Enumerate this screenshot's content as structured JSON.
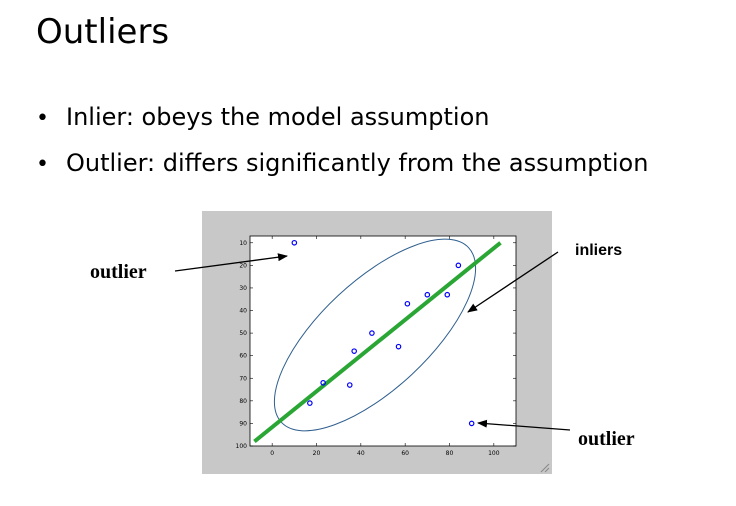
{
  "slide": {
    "title": "Outliers",
    "bullets": [
      "Inlier: obeys the model assumption",
      "Outlier: differs significantly from the assumption"
    ],
    "bullet_symbol": "•"
  },
  "annotations": {
    "left_outlier": "outlier",
    "inliers": "inliers",
    "right_outlier": "outlier"
  },
  "chart_data": {
    "type": "scatter",
    "x_ticks": [
      "0",
      "20",
      "40",
      "60",
      "80",
      "100"
    ],
    "y_ticks": [
      "10",
      "20",
      "30",
      "40",
      "50",
      "60",
      "70",
      "80",
      "90",
      "100"
    ],
    "xlim": [
      -10,
      110
    ],
    "ylim": [
      7,
      100
    ],
    "y_reversed": true,
    "point_color": "#0000ff",
    "line_color": "#2aa635",
    "ellipse_color": "#2f5f8f",
    "points": [
      {
        "x": 10,
        "y": 10,
        "label": "outlier"
      },
      {
        "x": 84,
        "y": 20
      },
      {
        "x": 61,
        "y": 37
      },
      {
        "x": 70,
        "y": 33
      },
      {
        "x": 79,
        "y": 33
      },
      {
        "x": 45,
        "y": 50
      },
      {
        "x": 37,
        "y": 58
      },
      {
        "x": 57,
        "y": 56
      },
      {
        "x": 23,
        "y": 72
      },
      {
        "x": 35,
        "y": 73
      },
      {
        "x": 17,
        "y": 81
      },
      {
        "x": 90,
        "y": 90,
        "label": "outlier"
      }
    ],
    "fit_line": {
      "x": [
        -8,
        103
      ],
      "y": [
        98,
        10
      ]
    },
    "grid": false,
    "legend": "none"
  }
}
